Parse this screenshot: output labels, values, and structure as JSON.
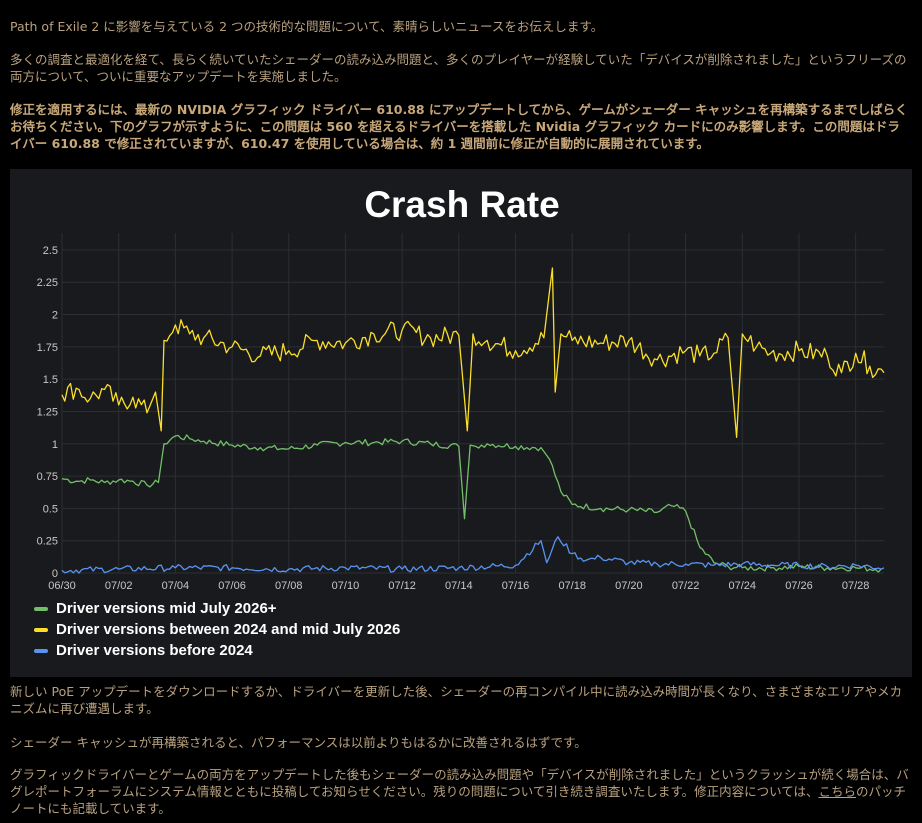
{
  "article": {
    "p1": "Path of Exile 2 に影響を与えている 2 つの技術的な問題について、素晴らしいニュースをお伝えします。",
    "p2": "多くの調査と最適化を経て、長らく続いていたシェーダーの読み込み問題と、多くのプレイヤーが経験していた「デバイスが削除されました」というフリーズの両方について、ついに重要なアップデートを実施しました。",
    "p3": "修正を適用するには、最新の NVIDIA グラフィック ドライバー 610.88 にアップデートしてから、ゲームがシェーダー キャッシュを再構築するまでしばらくお待ちください。下のグラフが示すように、この問題は 560 を超えるドライバーを搭載した Nvidia グラフィック カードにのみ影響します。この問題はドライバー 610.88 で修正されていますが、610.47 を使用している場合は、約 1 週間前に修正が自動的に展開されています。",
    "p4": "新しい PoE アップデートをダウンロードするか、ドライバーを更新した後、シェーダーの再コンパイル中に読み込み時間が長くなり、さまざまなエリアやメカニズムに再び遭遇します。",
    "p5": "シェーダー キャッシュが再構築されると、パフォーマンスは以前よりもはるかに改善されるはずです。",
    "p6_before": "グラフィックドライバーとゲームの両方をアップデートした後もシェーダーの読み込み問題や「デバイスが削除されました」というクラッシュが続く場合は、バグレポートフォーラムにシステム情報とともに投稿してお知らせください。残りの問題について引き続き調査いたします。修正内容については、",
    "p6_link": "こちら",
    "p6_after": "のパッチノートにも記載しています。"
  },
  "chart_data": {
    "type": "line",
    "title": "Crash Rate",
    "xlabel": "",
    "ylabel": "",
    "x_range": [
      "06/30",
      "07/29"
    ],
    "x_ticks": [
      "06/30",
      "07/02",
      "07/04",
      "07/06",
      "07/08",
      "07/10",
      "07/12",
      "07/14",
      "07/16",
      "07/18",
      "07/20",
      "07/22",
      "07/24",
      "07/26",
      "07/28"
    ],
    "y_ticks": [
      "0",
      "0.25",
      "0.5",
      "0.75",
      "1",
      "1.25",
      "1.5",
      "1.75",
      "2",
      "2.25",
      "2.5"
    ],
    "ylim": [
      0,
      2.6
    ],
    "grid": true,
    "legend_position": "bottom-left",
    "background": "#191a1d",
    "series": [
      {
        "name": "Driver versions mid July 2026+",
        "color": "#73bf69",
        "x": [
          0,
          0.5,
          1,
          1.5,
          2,
          2.5,
          3,
          3.4,
          3.6,
          4,
          4.5,
          5,
          6,
          7,
          8,
          9,
          10,
          11,
          12,
          13,
          14,
          14.2,
          14.4,
          14.6,
          15,
          16,
          16.9,
          17.2,
          17.6,
          18,
          19,
          20,
          21,
          21.5,
          22,
          22.5,
          23,
          23.5,
          24,
          25,
          26,
          27,
          28,
          28.9
        ],
        "y": [
          0.73,
          0.71,
          0.72,
          0.7,
          0.72,
          0.71,
          0.68,
          0.7,
          1.0,
          1.06,
          1.04,
          1.02,
          0.99,
          0.97,
          0.96,
          0.99,
          1.01,
          1.01,
          1.02,
          1.0,
          0.98,
          0.42,
          0.99,
          0.98,
          1.0,
          0.98,
          0.97,
          0.88,
          0.63,
          0.53,
          0.5,
          0.49,
          0.47,
          0.52,
          0.48,
          0.2,
          0.08,
          0.05,
          0.04,
          0.04,
          0.05,
          0.04,
          0.04,
          0.03
        ]
      },
      {
        "name": "Driver versions between 2024 and mid July 2026",
        "color": "#fade2a",
        "x": [
          0,
          0.5,
          1,
          1.5,
          2,
          2.5,
          3,
          3.3,
          3.5,
          3.6,
          4,
          4.5,
          5,
          6,
          7,
          8,
          9,
          10,
          11,
          12,
          13,
          14,
          14.3,
          14.5,
          15,
          16,
          17,
          17.3,
          17.4,
          17.6,
          18,
          19,
          20,
          21,
          22,
          22.5,
          23,
          23.5,
          23.8,
          24,
          24.5,
          25,
          26,
          27,
          27.5,
          28,
          28.5,
          29
        ],
        "y": [
          1.38,
          1.43,
          1.35,
          1.42,
          1.3,
          1.36,
          1.24,
          1.4,
          1.1,
          1.8,
          1.92,
          1.85,
          1.82,
          1.75,
          1.68,
          1.72,
          1.8,
          1.78,
          1.85,
          1.88,
          1.82,
          1.84,
          1.1,
          1.85,
          1.8,
          1.72,
          1.82,
          2.36,
          1.4,
          1.85,
          1.8,
          1.78,
          1.8,
          1.65,
          1.72,
          1.68,
          1.7,
          1.82,
          1.05,
          1.85,
          1.75,
          1.7,
          1.72,
          1.68,
          1.55,
          1.7,
          1.6,
          1.55
        ]
      },
      {
        "name": "Driver versions before 2024",
        "color": "#5794f2",
        "x": [
          0,
          2,
          4,
          6,
          8,
          10,
          12,
          14,
          16,
          16.9,
          17.1,
          17.5,
          18,
          18.5,
          19,
          20,
          21,
          22,
          23,
          24,
          25,
          26,
          27,
          28,
          29
        ],
        "y": [
          0.02,
          0.03,
          0.04,
          0.04,
          0.03,
          0.04,
          0.03,
          0.04,
          0.06,
          0.25,
          0.08,
          0.28,
          0.15,
          0.1,
          0.12,
          0.08,
          0.07,
          0.07,
          0.06,
          0.07,
          0.06,
          0.06,
          0.05,
          0.06,
          0.04
        ]
      }
    ]
  }
}
